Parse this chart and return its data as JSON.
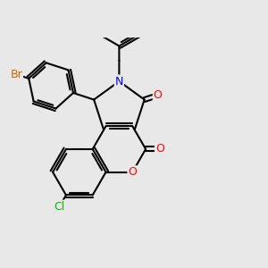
{
  "bg_color": "#e8e8e8",
  "bond_color": "#000000",
  "bond_width": 1.5,
  "atom_colors": {
    "O": "#ff0000",
    "N": "#0000ff",
    "Cl": "#00bb00",
    "Br": "#cc6600",
    "C": "#000000"
  },
  "font_size": 9,
  "figsize": [
    3.0,
    3.0
  ],
  "dpi": 100
}
